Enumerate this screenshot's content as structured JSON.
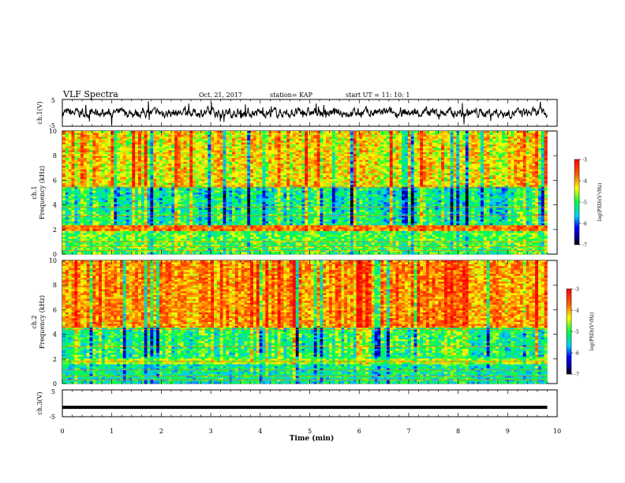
{
  "header": {
    "title": "VLF Spectra",
    "date": "Oct. 21, 2017",
    "station": "station= KAP",
    "start_ut": "start  UT =   11: 10: 1"
  },
  "chart_data": [
    {
      "type": "line",
      "panel": "ch1-waveform",
      "ylabel": "ch.1(V)",
      "ylim": [
        -5,
        5
      ],
      "yticks": [
        "5",
        "-5"
      ],
      "xlim": [
        0,
        10
      ],
      "data_extent_min": [
        0,
        9.8
      ],
      "description_of_series": "noisy voltage trace centered near 0 V, amplitude roughly ±2 V"
    },
    {
      "type": "heatmap",
      "panel": "ch1-spectrogram",
      "ylabel": "ch.1 Frequency (kHz)",
      "ylabel_line1": "ch.1",
      "ylabel_line2": "Frequency  (kHz)",
      "ylim": [
        0,
        10
      ],
      "yticks": [
        "0",
        "2",
        "4",
        "6",
        "8",
        "10"
      ],
      "xlim": [
        0,
        10
      ],
      "colorbar": {
        "label": "log(PSD)(V²/Hz)",
        "range": [
          -7,
          -3
        ],
        "ticks": [
          "-3",
          "-4",
          "-5",
          "-6",
          "-7"
        ]
      },
      "bands_khz": [
        {
          "range": [
            0,
            0.4
          ],
          "level": -5.0
        },
        {
          "range": [
            0.4,
            1.8
          ],
          "level": -4.9
        },
        {
          "range": [
            1.8,
            2.4
          ],
          "level": -3.7
        },
        {
          "range": [
            2.4,
            3.4
          ],
          "level": -5.2
        },
        {
          "range": [
            3.4,
            5.5
          ],
          "level": -5.3
        },
        {
          "range": [
            5.5,
            10
          ],
          "level": -4.3
        }
      ]
    },
    {
      "type": "heatmap",
      "panel": "ch2-spectrogram",
      "ylabel_line1": "ch.2",
      "ylabel_line2": "Frequency  (kHz)",
      "ylim": [
        0,
        10
      ],
      "yticks": [
        "0",
        "2",
        "4",
        "6",
        "8",
        "10"
      ],
      "xlim": [
        0,
        10
      ],
      "colorbar": {
        "label": "log(PSD)(V²/Hz)",
        "range": [
          -7,
          -3
        ],
        "ticks": [
          "-3",
          "-4",
          "-5",
          "-6",
          "-7"
        ]
      },
      "bands_khz": [
        {
          "range": [
            0,
            1.6
          ],
          "level": -5.3
        },
        {
          "range": [
            1.6,
            2.0
          ],
          "level": -4.6
        },
        {
          "range": [
            2.0,
            4.5
          ],
          "level": -5.1
        },
        {
          "range": [
            4.5,
            10
          ],
          "level": -3.9
        }
      ]
    },
    {
      "type": "line",
      "panel": "ch3-waveform",
      "ylabel": "ch.3(V)",
      "ylim": [
        -5,
        5
      ],
      "yticks": [
        "5",
        "-5"
      ],
      "xlim": [
        0,
        10
      ],
      "constant_value": -1.5
    }
  ],
  "xaxis": {
    "label": "Time  (min)",
    "ticks": [
      "0",
      "1",
      "2",
      "3",
      "4",
      "5",
      "6",
      "7",
      "8",
      "9",
      "10"
    ]
  },
  "colors": {
    "axis": "#000000",
    "trace": "#000000"
  }
}
